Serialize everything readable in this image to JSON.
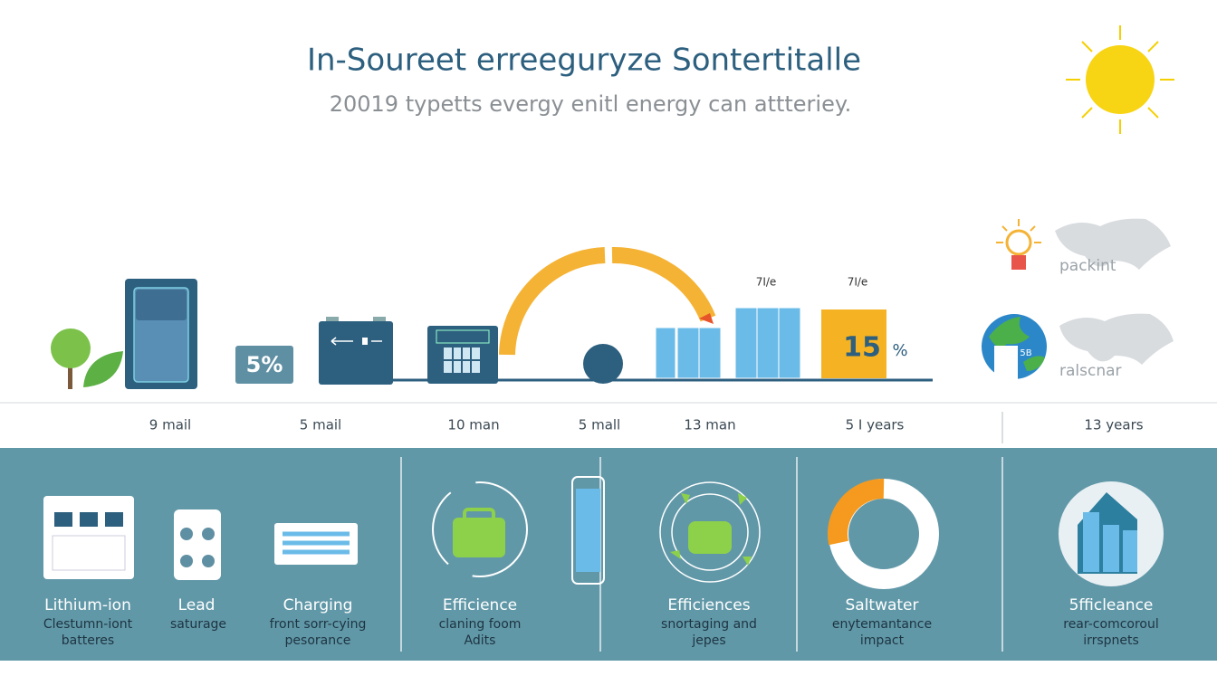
{
  "header": {
    "title": "In-Soureet erreeguryze Sontertitalle",
    "subtitle": "20019 typetts evergy enitl energy can attteriey."
  },
  "graphic": {
    "top_labels": [
      "7I/e",
      "7I/e"
    ],
    "badge_left": "5%",
    "badge_right": "15",
    "badge_right_unit": "%",
    "globe_tag": "5B",
    "legend": [
      "packint",
      "ralscnar"
    ]
  },
  "timeline": [
    "9 mail",
    "5 mail",
    "10 man",
    "5 mall",
    "13 man",
    "5 I years",
    "13 years"
  ],
  "panels": [
    {
      "title": "Lithium-ion",
      "lines": [
        "Clestumn-iont",
        "batteres"
      ]
    },
    {
      "title": "Lead",
      "lines": [
        "saturage"
      ]
    },
    {
      "title": "Charging",
      "lines": [
        "front sorr-cying",
        "pesorance"
      ]
    },
    {
      "title": "Efficience",
      "lines": [
        "claning foom",
        "Adits"
      ]
    },
    {
      "title": "Efficiences",
      "lines": [
        "snortaging and",
        "jepes"
      ]
    },
    {
      "title": "Saltwater",
      "lines": [
        "enytemantance",
        "impact"
      ]
    },
    {
      "title": "5fficleance",
      "lines": [
        "rear-comcoroul",
        "irrspnets"
      ]
    }
  ]
}
